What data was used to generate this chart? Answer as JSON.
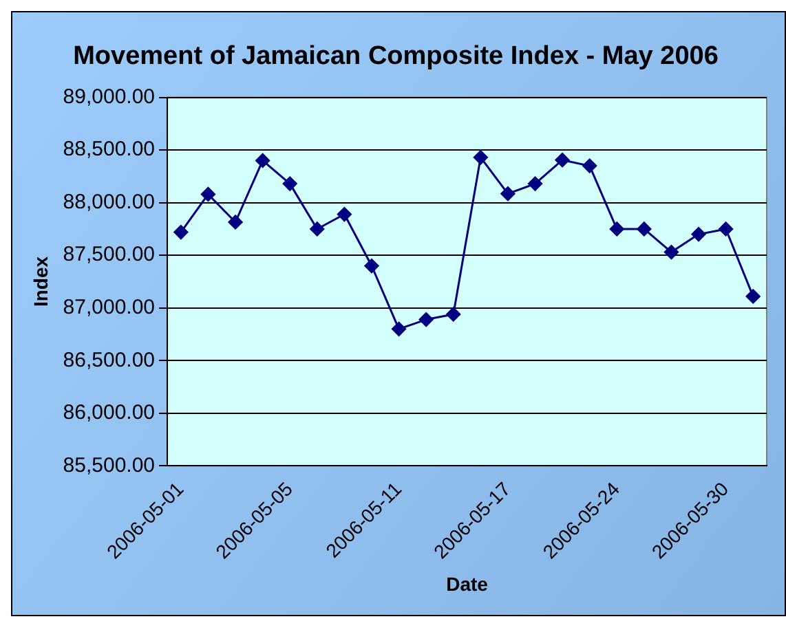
{
  "chart_data": {
    "type": "line",
    "title": "Movement of Jamaican Composite Index - May 2006",
    "xlabel": "Date",
    "ylabel": "Index",
    "categories": [
      "2006-05-01",
      null,
      null,
      null,
      "2006-05-05",
      null,
      null,
      null,
      "2006-05-11",
      null,
      null,
      null,
      "2006-05-17",
      null,
      null,
      null,
      "2006-05-24",
      null,
      null,
      null,
      "2006-05-30",
      null
    ],
    "series": [
      {
        "color": "#000080",
        "values": [
          87720,
          88080,
          87815,
          88400,
          88180,
          87750,
          87890,
          87400,
          86800,
          86890,
          86940,
          88430,
          88085,
          88180,
          88405,
          88350,
          87750,
          87750,
          87530,
          87700,
          87750,
          87110
        ]
      }
    ],
    "ylim": [
      85500,
      89000
    ],
    "yticks": [
      {
        "value": 85500,
        "label": "85,500.00"
      },
      {
        "value": 86000,
        "label": "86,000.00"
      },
      {
        "value": 86500,
        "label": "86,500.00"
      },
      {
        "value": 87000,
        "label": "87,000.00"
      },
      {
        "value": 87500,
        "label": "87,500.00"
      },
      {
        "value": 88000,
        "label": "88,000.00"
      },
      {
        "value": 88500,
        "label": "88,500.00"
      },
      {
        "value": 89000,
        "label": "89,000.00"
      }
    ],
    "grid": "y",
    "legend": false,
    "marker": "diamond",
    "line_style": "solid"
  }
}
